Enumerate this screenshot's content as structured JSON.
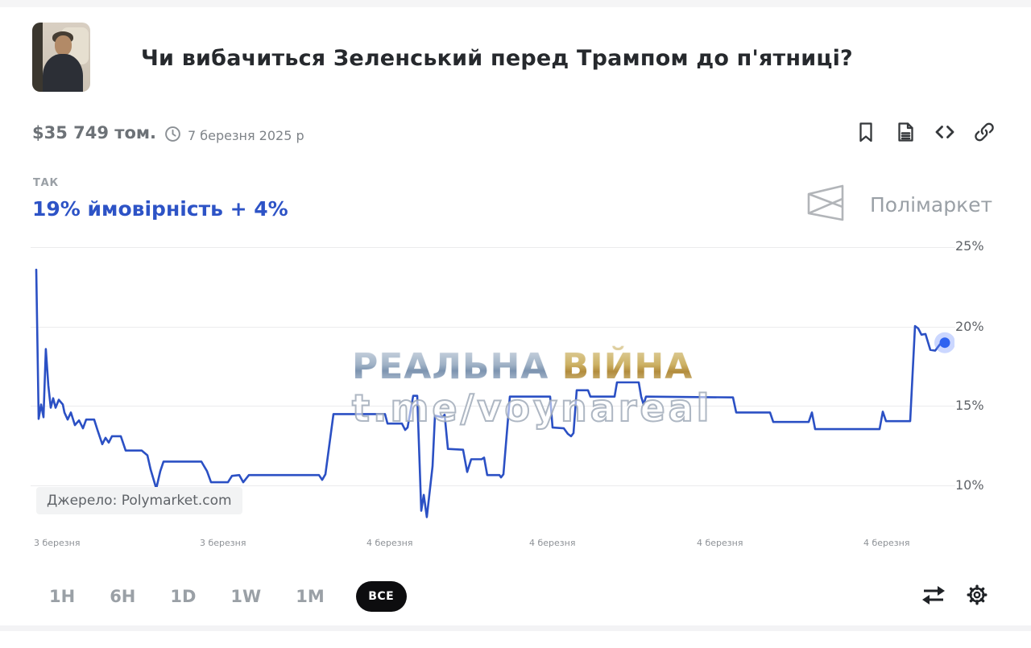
{
  "header": {
    "title": "Чи вибачиться Зеленський перед Трампом до п'ятниці?",
    "volume": "$35 749 том.",
    "date": "7 березня 2025 р"
  },
  "outcome": {
    "label": "ТАК",
    "probability": "19% ймовірність + 4%"
  },
  "brand": {
    "name": "Полімаркет",
    "logo_icon": "polymarket-logo-icon"
  },
  "toolbar_icons": [
    "bookmark-icon",
    "article-icon",
    "embed-code-icon",
    "link-icon"
  ],
  "footer_icons": [
    "swap-arrows-icon",
    "settings-gear-icon"
  ],
  "watermark": {
    "part1": "РЕАЛЬНА",
    "part2": "ВІЙНА",
    "handle": "t.me/voynareal"
  },
  "source_badge": {
    "text": "Джерело: Polymarket.com"
  },
  "controls": {
    "ranges": [
      "1H",
      "6H",
      "1D",
      "1W",
      "1M"
    ],
    "all_label": "ВСЕ",
    "selected": "ВСЕ"
  },
  "colors": {
    "line": "#2b50c4",
    "endpoint": "#2f63f0",
    "endpoint_halo": "rgba(105,140,255,0.35)",
    "probability_blue": "#2d53c6",
    "selected_pill": "#0d0d0f"
  },
  "chart_data": {
    "type": "line",
    "title": "Ймовірність ТАК",
    "legend": [],
    "grid": "horizontal",
    "ylim": [
      7,
      25.5
    ],
    "yticks": [
      25,
      20,
      15,
      10
    ],
    "ytick_labels": [
      "25%",
      "20%",
      "15%",
      "10%"
    ],
    "xtick_labels": [
      "3 березня",
      "3 березня",
      "4 березня",
      "4 березня",
      "4 березня",
      "4 березня"
    ],
    "endpoint": {
      "x": 98.95,
      "value": 19.0
    },
    "series": [
      {
        "name": "ТАК",
        "points": [
          [
            0.44,
            23.6
          ],
          [
            0.7,
            14.2
          ],
          [
            0.96,
            15.1
          ],
          [
            1.22,
            14.3
          ],
          [
            1.48,
            18.6
          ],
          [
            1.75,
            16.3
          ],
          [
            2.01,
            14.9
          ],
          [
            2.27,
            15.5
          ],
          [
            2.53,
            14.9
          ],
          [
            2.88,
            15.4
          ],
          [
            3.32,
            15.1
          ],
          [
            3.49,
            14.6
          ],
          [
            3.84,
            14.15
          ],
          [
            4.19,
            14.6
          ],
          [
            4.63,
            13.8
          ],
          [
            5.07,
            14.1
          ],
          [
            5.5,
            13.6
          ],
          [
            5.85,
            14.15
          ],
          [
            6.72,
            14.15
          ],
          [
            7.07,
            13.5
          ],
          [
            7.6,
            12.6
          ],
          [
            7.95,
            13.0
          ],
          [
            8.3,
            12.7
          ],
          [
            8.65,
            13.1
          ],
          [
            9.61,
            13.1
          ],
          [
            10.13,
            12.2
          ],
          [
            11.88,
            12.2
          ],
          [
            12.49,
            11.9
          ],
          [
            12.84,
            11.0
          ],
          [
            13.45,
            9.8
          ],
          [
            13.89,
            10.9
          ],
          [
            14.24,
            11.5
          ],
          [
            18.34,
            11.5
          ],
          [
            18.95,
            10.9
          ],
          [
            19.39,
            10.2
          ],
          [
            21.22,
            10.2
          ],
          [
            21.66,
            10.6
          ],
          [
            22.45,
            10.65
          ],
          [
            22.88,
            10.2
          ],
          [
            23.49,
            10.65
          ],
          [
            31.09,
            10.65
          ],
          [
            31.44,
            10.35
          ],
          [
            31.79,
            10.7
          ],
          [
            32.66,
            14.5
          ],
          [
            38.25,
            14.5
          ],
          [
            38.52,
            13.9
          ],
          [
            40.09,
            13.9
          ],
          [
            40.44,
            13.5
          ],
          [
            40.7,
            13.65
          ],
          [
            41.31,
            15.65
          ],
          [
            41.75,
            15.65
          ],
          [
            42.18,
            8.4
          ],
          [
            42.45,
            9.4
          ],
          [
            42.79,
            8.0
          ],
          [
            43.41,
            11.2
          ],
          [
            43.67,
            14.4
          ],
          [
            44.45,
            14.3
          ],
          [
            44.72,
            14.45
          ],
          [
            45.07,
            12.3
          ],
          [
            46.72,
            12.25
          ],
          [
            47.16,
            10.85
          ],
          [
            47.6,
            11.65
          ],
          [
            48.73,
            11.65
          ],
          [
            49.0,
            11.75
          ],
          [
            49.34,
            10.65
          ],
          [
            50.66,
            10.65
          ],
          [
            50.83,
            10.5
          ],
          [
            51.09,
            10.7
          ],
          [
            51.79,
            15.6
          ],
          [
            56.16,
            15.6
          ],
          [
            56.42,
            13.65
          ],
          [
            57.64,
            13.6
          ],
          [
            58.08,
            13.25
          ],
          [
            58.43,
            13.1
          ],
          [
            58.69,
            13.3
          ],
          [
            59.04,
            16.0
          ],
          [
            60.26,
            16.0
          ],
          [
            60.52,
            15.6
          ],
          [
            63.14,
            15.6
          ],
          [
            63.41,
            16.5
          ],
          [
            65.76,
            16.5
          ],
          [
            66.03,
            15.6
          ],
          [
            66.29,
            15.1
          ],
          [
            66.55,
            15.6
          ],
          [
            75.98,
            15.55
          ],
          [
            76.33,
            14.6
          ],
          [
            80.0,
            14.6
          ],
          [
            80.35,
            14.0
          ],
          [
            84.19,
            14.0
          ],
          [
            84.54,
            14.6
          ],
          [
            84.89,
            13.55
          ],
          [
            91.88,
            13.55
          ],
          [
            92.23,
            14.65
          ],
          [
            92.58,
            14.05
          ],
          [
            95.2,
            14.05
          ],
          [
            95.72,
            20.05
          ],
          [
            96.07,
            19.9
          ],
          [
            96.42,
            19.5
          ],
          [
            96.86,
            19.55
          ],
          [
            97.38,
            18.55
          ],
          [
            97.9,
            18.5
          ],
          [
            98.43,
            18.9
          ],
          [
            98.95,
            19.0
          ]
        ]
      }
    ]
  }
}
